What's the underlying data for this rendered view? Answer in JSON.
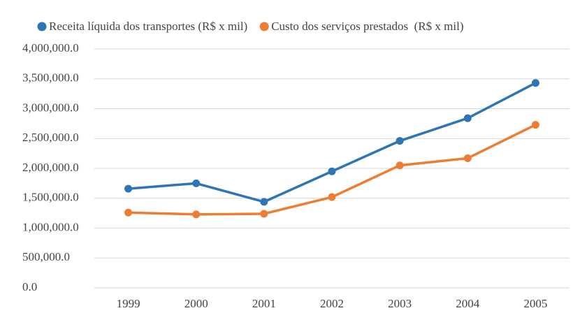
{
  "chart_data": {
    "type": "line",
    "categories": [
      "1999",
      "2000",
      "2001",
      "2002",
      "2003",
      "2004",
      "2005"
    ],
    "series": [
      {
        "name": "Receita líquida dos transportes (R$ x mil)",
        "color": "#2e75b6",
        "values": [
          1660000,
          1750000,
          1440000,
          1950000,
          2460000,
          2840000,
          3430000
        ]
      },
      {
        "name": "Custo dos serviços prestados  (R$ x mil)",
        "color": "#ed7d31",
        "values": [
          1260000,
          1230000,
          1240000,
          1520000,
          2050000,
          2170000,
          2730000
        ]
      }
    ],
    "ylim": [
      0,
      4000000
    ],
    "yticks": [
      {
        "value": 0,
        "label": "0.0"
      },
      {
        "value": 500000,
        "label": "500,000.0"
      },
      {
        "value": 1000000,
        "label": "1,000,000.0"
      },
      {
        "value": 1500000,
        "label": "1,500,000.0"
      },
      {
        "value": 2000000,
        "label": "2,000,000.0"
      },
      {
        "value": 2500000,
        "label": "2,500,000.0"
      },
      {
        "value": 3000000,
        "label": "3,000,000.0"
      },
      {
        "value": 3500000,
        "label": "3,500,000.0"
      },
      {
        "value": 4000000,
        "label": "4,000,000.0"
      }
    ],
    "grid": true
  }
}
